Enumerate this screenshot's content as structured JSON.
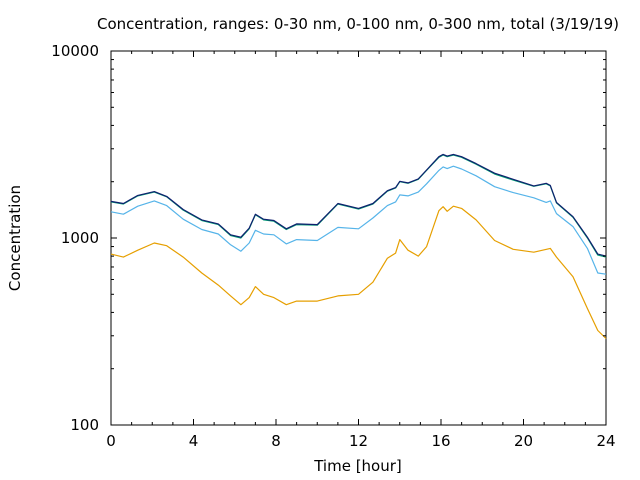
{
  "chart_data": {
    "type": "line",
    "title": "Concentration, ranges: 0-30 nm, 0-100 nm, 0-300 nm, total (3/19/19)",
    "xlabel": "Time [hour]",
    "ylabel": "Concentration",
    "xlim": [
      0,
      24
    ],
    "ylim": [
      100,
      10000
    ],
    "yscale": "log",
    "grid": false,
    "legend": "none",
    "x_ticks": [
      "0",
      "4",
      "8",
      "12",
      "16",
      "20",
      "24"
    ],
    "y_ticks": [
      "100",
      "1000",
      "10000"
    ],
    "series": [
      {
        "color": "#e69f00",
        "points": [
          [
            0,
            820
          ],
          [
            0.6,
            790
          ],
          [
            1.3,
            860
          ],
          [
            2.1,
            940
          ],
          [
            2.7,
            910
          ],
          [
            3.5,
            790
          ],
          [
            4.4,
            650
          ],
          [
            5.2,
            560
          ],
          [
            5.8,
            490
          ],
          [
            6.3,
            440
          ],
          [
            6.7,
            480
          ],
          [
            7.0,
            550
          ],
          [
            7.4,
            500
          ],
          [
            7.9,
            480
          ],
          [
            8.5,
            440
          ],
          [
            9.0,
            460
          ],
          [
            10.0,
            460
          ],
          [
            11.0,
            490
          ],
          [
            12.0,
            500
          ],
          [
            12.7,
            580
          ],
          [
            13.4,
            780
          ],
          [
            13.8,
            830
          ],
          [
            14.0,
            980
          ],
          [
            14.4,
            860
          ],
          [
            14.9,
            800
          ],
          [
            15.3,
            900
          ],
          [
            15.9,
            1400
          ],
          [
            16.1,
            1470
          ],
          [
            16.3,
            1390
          ],
          [
            16.6,
            1480
          ],
          [
            17.0,
            1440
          ],
          [
            17.7,
            1250
          ],
          [
            18.6,
            970
          ],
          [
            19.5,
            870
          ],
          [
            20.5,
            840
          ],
          [
            21.3,
            880
          ],
          [
            21.6,
            790
          ],
          [
            22.4,
            620
          ],
          [
            23.1,
            420
          ],
          [
            23.6,
            320
          ],
          [
            24.0,
            290
          ]
        ]
      },
      {
        "color": "#56b4e9",
        "points": [
          [
            0,
            1380
          ],
          [
            0.6,
            1340
          ],
          [
            1.3,
            1480
          ],
          [
            2.1,
            1580
          ],
          [
            2.7,
            1490
          ],
          [
            3.5,
            1260
          ],
          [
            4.4,
            1110
          ],
          [
            5.2,
            1050
          ],
          [
            5.8,
            920
          ],
          [
            6.3,
            850
          ],
          [
            6.7,
            940
          ],
          [
            7.0,
            1100
          ],
          [
            7.4,
            1050
          ],
          [
            7.9,
            1040
          ],
          [
            8.5,
            930
          ],
          [
            9.0,
            980
          ],
          [
            10.0,
            970
          ],
          [
            11.0,
            1140
          ],
          [
            12.0,
            1120
          ],
          [
            12.7,
            1280
          ],
          [
            13.4,
            1490
          ],
          [
            13.8,
            1560
          ],
          [
            14.0,
            1700
          ],
          [
            14.4,
            1680
          ],
          [
            14.9,
            1760
          ],
          [
            15.3,
            1950
          ],
          [
            15.9,
            2300
          ],
          [
            16.1,
            2400
          ],
          [
            16.3,
            2350
          ],
          [
            16.6,
            2420
          ],
          [
            17.0,
            2340
          ],
          [
            17.7,
            2150
          ],
          [
            18.6,
            1880
          ],
          [
            19.5,
            1750
          ],
          [
            20.5,
            1640
          ],
          [
            21.1,
            1550
          ],
          [
            21.3,
            1580
          ],
          [
            21.6,
            1350
          ],
          [
            22.4,
            1150
          ],
          [
            23.1,
            880
          ],
          [
            23.6,
            650
          ],
          [
            24.0,
            640
          ]
        ]
      },
      {
        "color": "#009e73",
        "points": [
          [
            0,
            1560
          ],
          [
            0.6,
            1520
          ],
          [
            1.3,
            1680
          ],
          [
            2.1,
            1760
          ],
          [
            2.7,
            1660
          ],
          [
            3.5,
            1410
          ],
          [
            4.4,
            1240
          ],
          [
            5.2,
            1180
          ],
          [
            5.8,
            1030
          ],
          [
            6.3,
            1000
          ],
          [
            6.7,
            1120
          ],
          [
            7.0,
            1330
          ],
          [
            7.4,
            1250
          ],
          [
            7.9,
            1230
          ],
          [
            8.5,
            1110
          ],
          [
            9.0,
            1180
          ],
          [
            10.0,
            1170
          ],
          [
            11.0,
            1520
          ],
          [
            12.0,
            1430
          ],
          [
            12.7,
            1520
          ],
          [
            13.4,
            1780
          ],
          [
            13.8,
            1850
          ],
          [
            14.0,
            2000
          ],
          [
            14.4,
            1960
          ],
          [
            14.9,
            2060
          ],
          [
            15.3,
            2300
          ],
          [
            15.9,
            2700
          ],
          [
            16.1,
            2780
          ],
          [
            16.3,
            2720
          ],
          [
            16.6,
            2780
          ],
          [
            17.0,
            2700
          ],
          [
            17.7,
            2480
          ],
          [
            18.6,
            2200
          ],
          [
            19.5,
            2040
          ],
          [
            20.5,
            1890
          ],
          [
            21.1,
            1950
          ],
          [
            21.3,
            1900
          ],
          [
            21.6,
            1540
          ],
          [
            22.4,
            1290
          ],
          [
            23.1,
            1000
          ],
          [
            23.6,
            810
          ],
          [
            24.0,
            790
          ]
        ]
      },
      {
        "color": "#0f1f6e",
        "points": [
          [
            0,
            1570
          ],
          [
            0.6,
            1530
          ],
          [
            1.3,
            1690
          ],
          [
            2.1,
            1770
          ],
          [
            2.7,
            1670
          ],
          [
            3.5,
            1420
          ],
          [
            4.4,
            1250
          ],
          [
            5.2,
            1190
          ],
          [
            5.8,
            1040
          ],
          [
            6.3,
            1010
          ],
          [
            6.7,
            1130
          ],
          [
            7.0,
            1340
          ],
          [
            7.4,
            1260
          ],
          [
            7.9,
            1240
          ],
          [
            8.5,
            1120
          ],
          [
            9.0,
            1190
          ],
          [
            10.0,
            1180
          ],
          [
            11.0,
            1530
          ],
          [
            12.0,
            1440
          ],
          [
            12.7,
            1530
          ],
          [
            13.4,
            1790
          ],
          [
            13.8,
            1860
          ],
          [
            14.0,
            2010
          ],
          [
            14.4,
            1970
          ],
          [
            14.9,
            2070
          ],
          [
            15.3,
            2310
          ],
          [
            15.9,
            2720
          ],
          [
            16.1,
            2800
          ],
          [
            16.3,
            2740
          ],
          [
            16.6,
            2800
          ],
          [
            17.0,
            2720
          ],
          [
            17.7,
            2500
          ],
          [
            18.6,
            2220
          ],
          [
            19.5,
            2060
          ],
          [
            20.5,
            1900
          ],
          [
            21.1,
            1960
          ],
          [
            21.3,
            1910
          ],
          [
            21.6,
            1550
          ],
          [
            22.4,
            1300
          ],
          [
            23.1,
            1010
          ],
          [
            23.6,
            820
          ],
          [
            24.0,
            800
          ]
        ]
      }
    ]
  }
}
